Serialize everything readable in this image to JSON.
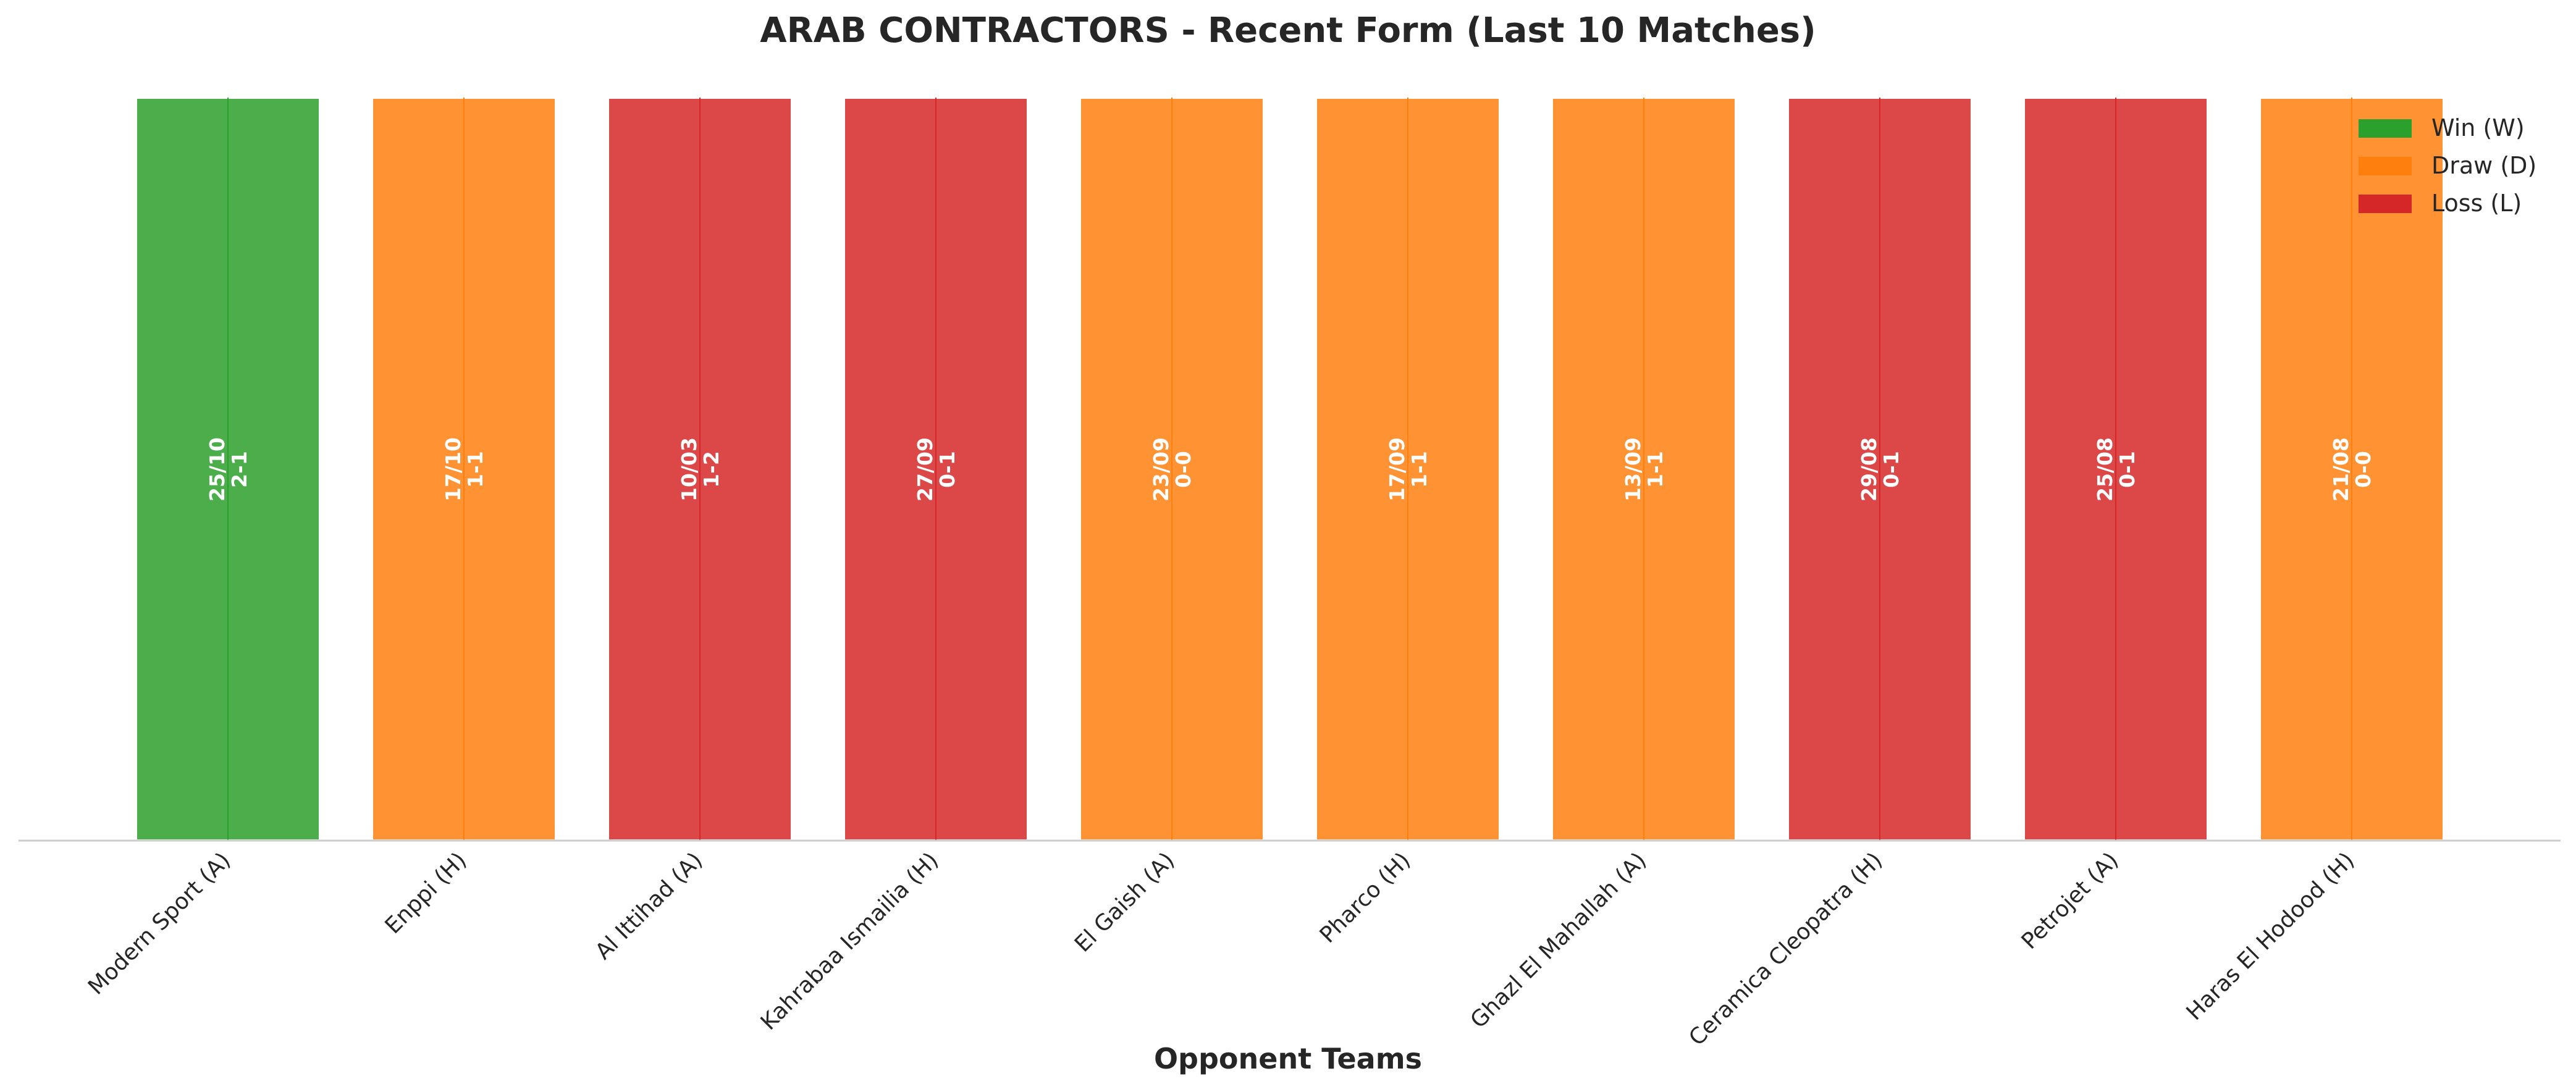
{
  "chart_data": {
    "type": "bar",
    "title": "ARAB CONTRACTORS - Recent Form (Last 10 Matches)",
    "xlabel": "Opponent Teams",
    "ylabel": "",
    "ylim": [
      0,
      1
    ],
    "grid": false,
    "legend_position": "top-right",
    "categories": [
      "Modern Sport (A)",
      "Enppi (H)",
      "Al Ittihad (A)",
      "Kahrabaa Ismailia (H)",
      "El Gaish (A)",
      "Pharco (H)",
      "Ghazl El Mahallah (A)",
      "Ceramica Cleopatra (H)",
      "Petrojet (A)",
      "Haras El Hodood (H)"
    ],
    "values": [
      1,
      1,
      1,
      1,
      1,
      1,
      1,
      1,
      1,
      1
    ],
    "results": [
      "W",
      "D",
      "L",
      "L",
      "D",
      "D",
      "D",
      "L",
      "L",
      "D"
    ],
    "dates": [
      "25/10",
      "17/10",
      "10/03",
      "27/09",
      "23/09",
      "17/09",
      "13/09",
      "29/08",
      "25/08",
      "21/08"
    ],
    "scores": [
      "2-1",
      "1-1",
      "1-2",
      "0-1",
      "0-0",
      "1-1",
      "1-1",
      "0-1",
      "0-1",
      "0-0"
    ],
    "legend": [
      {
        "key": "W",
        "label": "Win (W)",
        "color": "#2ca02c"
      },
      {
        "key": "D",
        "label": "Draw (D)",
        "color": "#ff7f0e"
      },
      {
        "key": "L",
        "label": "Loss (L)",
        "color": "#d62728"
      }
    ]
  }
}
